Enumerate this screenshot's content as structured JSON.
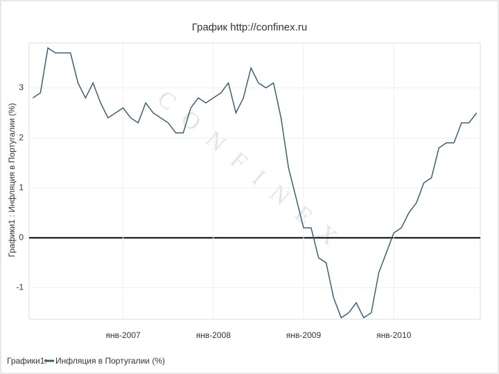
{
  "chart_data": {
    "type": "line",
    "title": "График   http://confinex.ru",
    "y_label": "Графики1 : Инфляция в Португалии (%)",
    "legend_title": "Графики1:",
    "watermark": "CONFINEX",
    "categories": [
      null,
      null,
      null,
      null,
      null,
      null,
      null,
      null,
      null,
      null,
      null,
      null,
      "янв-2007",
      null,
      null,
      null,
      null,
      null,
      null,
      null,
      null,
      null,
      null,
      null,
      "янв-2008",
      null,
      null,
      null,
      null,
      null,
      null,
      null,
      null,
      null,
      null,
      null,
      "янв-2009",
      null,
      null,
      null,
      null,
      null,
      null,
      null,
      null,
      null,
      null,
      null,
      "янв-2010",
      null,
      null,
      null,
      null,
      null,
      null,
      null,
      null,
      null,
      null,
      null
    ],
    "series": [
      {
        "name": "Инфляция в Португалии (%)",
        "color": "#3b5d70",
        "values": [
          2.8,
          2.9,
          3.8,
          3.7,
          3.7,
          3.7,
          3.1,
          2.8,
          3.1,
          2.7,
          2.4,
          2.5,
          2.6,
          2.4,
          2.3,
          2.7,
          2.5,
          2.4,
          2.3,
          2.1,
          2.1,
          2.6,
          2.8,
          2.7,
          2.8,
          2.9,
          3.1,
          2.5,
          2.8,
          3.4,
          3.1,
          3.0,
          3.1,
          2.4,
          1.4,
          0.8,
          0.2,
          0.2,
          -0.4,
          -0.5,
          -1.2,
          -1.6,
          -1.5,
          -1.3,
          -1.6,
          -1.5,
          -0.7,
          -0.3,
          0.1,
          0.2,
          0.5,
          0.7,
          1.1,
          1.2,
          1.8,
          1.9,
          1.9,
          2.3,
          2.3,
          2.5
        ]
      }
    ],
    "ylim": [
      -1.63,
      3.9
    ],
    "yticks": [
      -1,
      0,
      1,
      2,
      3
    ],
    "grid": true
  }
}
